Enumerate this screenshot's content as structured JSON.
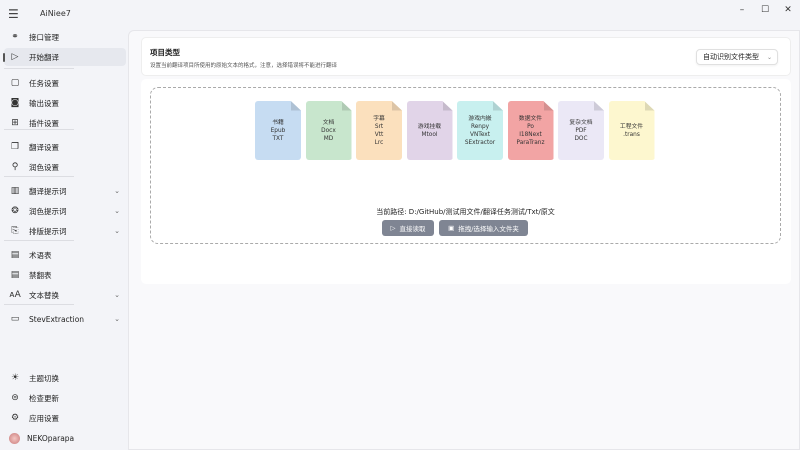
{
  "app": {
    "title": "AiNiee7",
    "window_controls": [
      "minimize",
      "maximize",
      "close"
    ]
  },
  "sidebar": {
    "items": [
      {
        "label": "接口管理",
        "icon": "plug-icon",
        "glyph": "⚭"
      },
      {
        "label": "开始翻译",
        "icon": "play-icon",
        "glyph": "▷",
        "active": true
      },
      {
        "label": "任务设置",
        "icon": "task-icon",
        "glyph": "▢"
      },
      {
        "label": "输出设置",
        "icon": "output-icon",
        "glyph": "◙"
      },
      {
        "label": "插件设置",
        "icon": "plugin-icon",
        "glyph": "⊞"
      },
      {
        "label": "翻译设置",
        "icon": "translate-settings-icon",
        "glyph": "❐"
      },
      {
        "label": "润色设置",
        "icon": "polish-icon",
        "glyph": "⚲"
      },
      {
        "label": "翻译提示词",
        "icon": "library-icon",
        "glyph": "▥",
        "expandable": true
      },
      {
        "label": "润色提示词",
        "icon": "palette-icon",
        "glyph": "❂",
        "expandable": true
      },
      {
        "label": "排版提示词",
        "icon": "layout-icon",
        "glyph": "⎘",
        "expandable": true
      },
      {
        "label": "术语表",
        "icon": "glossary-icon",
        "glyph": "▤"
      },
      {
        "label": "禁翻表",
        "icon": "ban-list-icon",
        "glyph": "▤"
      },
      {
        "label": "文本替换",
        "icon": "text-replace-icon",
        "glyph": "ᴀA",
        "expandable": true
      },
      {
        "label": "StevExtraction",
        "icon": "folder-icon",
        "glyph": "▭",
        "expandable": true
      }
    ],
    "bottom": [
      {
        "label": "主题切换",
        "icon": "theme-icon",
        "glyph": "☀"
      },
      {
        "label": "检查更新",
        "icon": "update-icon",
        "glyph": "⊜"
      },
      {
        "label": "应用设置",
        "icon": "settings-gear-icon",
        "glyph": "⚙"
      }
    ],
    "user": {
      "name": "NEKOparapa"
    }
  },
  "project": {
    "title": "项目类型",
    "description": "设置当前翻译项目所使用的原始文本的格式，注意，选择错误将不能进行翻译",
    "dropdown_value": "自动识别文件类型"
  },
  "file_types": [
    {
      "lines": [
        "书籍",
        "Epub",
        "TXT"
      ],
      "color": "#c6dcf2"
    },
    {
      "lines": [
        "文档",
        "Docx",
        "MD"
      ],
      "color": "#c8e6cd"
    },
    {
      "lines": [
        "字幕",
        "Srt",
        "Vtt",
        "Lrc"
      ],
      "color": "#fbe0bd"
    },
    {
      "lines": [
        "游戏挂载",
        "Mtool"
      ],
      "color": "#e1d4e8"
    },
    {
      "lines": [
        "游戏内嵌",
        "Renpy",
        "VNText",
        "SExtractor"
      ],
      "color": "#c8f0ef"
    },
    {
      "lines": [
        "数据文件",
        "Po",
        "I18Next",
        "ParaTranz"
      ],
      "color": "#f2a4a4"
    },
    {
      "lines": [
        "复杂文档",
        "PDF",
        "DOC"
      ],
      "color": "#ebe8f6"
    },
    {
      "lines": [
        "工程文件",
        ".trans"
      ],
      "color": "#fdf7cf"
    }
  ],
  "current_path": "当前路径: D:/GitHub/测试用文件/翻译任务测试/Txt/原文",
  "buttons": {
    "read_directly": "直接读取",
    "select_folder": "拖拽/选择输入文件夹"
  }
}
